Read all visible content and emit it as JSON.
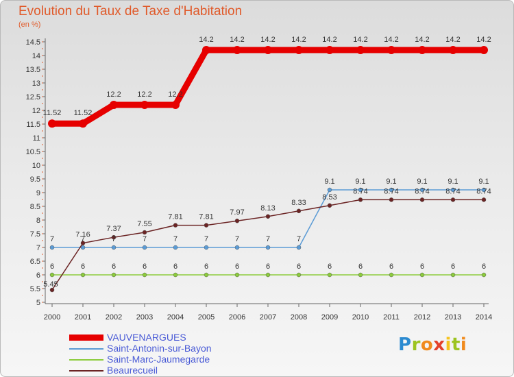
{
  "chart_data": {
    "type": "line",
    "title": "Evolution du Taux de Taxe d'Habitation",
    "ylabel": "(en %)",
    "xlabel": "",
    "categories": [
      "2000",
      "2001",
      "2002",
      "2003",
      "2004",
      "2005",
      "2006",
      "2007",
      "2008",
      "2009",
      "2010",
      "2011",
      "2012",
      "2013",
      "2014"
    ],
    "ylim": [
      5,
      14.5
    ],
    "yticks": [
      "5",
      "5.5",
      "6",
      "6.5",
      "7",
      "7.5",
      "8",
      "8.5",
      "9",
      "9.5",
      "10",
      "10.5",
      "11",
      "11.5",
      "12",
      "12.5",
      "13",
      "13.5",
      "14",
      "14.5"
    ],
    "grid": false,
    "legend_position": "bottom-left",
    "series": [
      {
        "name": "VAUVENARGUES",
        "color": "#e60000",
        "values": [
          11.52,
          11.52,
          12.2,
          12.2,
          12.2,
          14.2,
          14.2,
          14.2,
          14.2,
          14.2,
          14.2,
          14.2,
          14.2,
          14.2,
          14.2
        ],
        "labels": [
          "11.52",
          "11.52",
          "12.2",
          "12.2",
          "12.2",
          "14.2",
          "14.2",
          "14.2",
          "14.2",
          "14.2",
          "14.2",
          "14.2",
          "14.2",
          "14.2",
          "14.2"
        ]
      },
      {
        "name": "Saint-Antonin-sur-Bayon",
        "color": "#5b9bd5",
        "values": [
          7,
          7,
          7,
          7,
          7,
          7,
          7,
          7,
          7,
          9.1,
          9.1,
          9.1,
          9.1,
          9.1,
          9.1
        ],
        "labels": [
          "7",
          "7",
          "7",
          "7",
          "7",
          "7",
          "7",
          "7",
          "7",
          "9.1",
          "9.1",
          "9.1",
          "9.1",
          "9.1",
          "9.1"
        ]
      },
      {
        "name": "Saint-Marc-Jaumegarde",
        "color": "#8ccc3c",
        "values": [
          6,
          6,
          6,
          6,
          6,
          6,
          6,
          6,
          6,
          6,
          6,
          6,
          6,
          6,
          6
        ],
        "labels": [
          "6",
          "6",
          "6",
          "6",
          "6",
          "6",
          "6",
          "6",
          "6",
          "6",
          "6",
          "6",
          "6",
          "6",
          "6"
        ]
      },
      {
        "name": "Beaurecueil",
        "color": "#6b2424",
        "values": [
          5.45,
          7.16,
          7.37,
          7.55,
          7.81,
          7.81,
          7.97,
          8.13,
          8.33,
          8.53,
          8.74,
          8.74,
          8.74,
          8.74,
          8.74
        ],
        "labels": [
          "5.45",
          "7.16",
          "7.37",
          "7.55",
          "7.81",
          "7.81",
          "7.97",
          "8.13",
          "8.33",
          "8.53",
          "8.74",
          "8.74",
          "8.74",
          "8.74",
          "8.74"
        ]
      }
    ]
  },
  "logo_text": "Proxiti"
}
